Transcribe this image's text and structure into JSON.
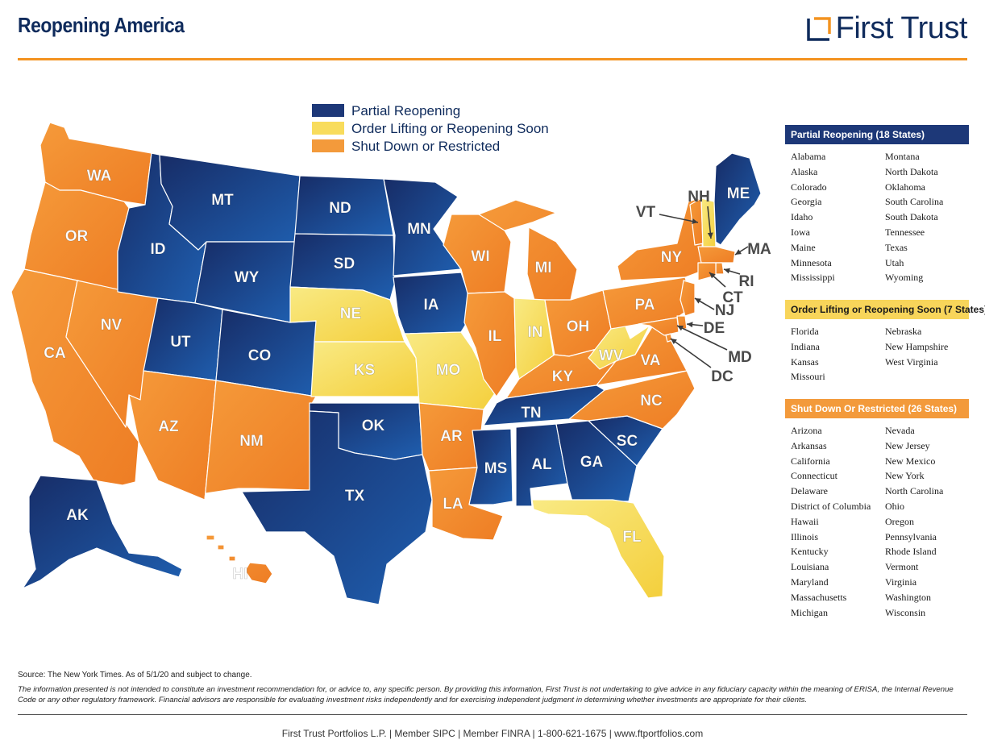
{
  "header": {
    "title": "Reopening America",
    "brand": "First Trust"
  },
  "colors": {
    "partial": "#1d3f86",
    "lifting": "#f7d84c",
    "shutdown": "#f28a2e",
    "accent": "#f39320",
    "navy": "#0f2b5c"
  },
  "legend": [
    {
      "label": "Partial Reopening",
      "category": "partial"
    },
    {
      "label": "Order Lifting or Reopening Soon",
      "category": "lifting"
    },
    {
      "label": "Shut Down or Restricted",
      "category": "shutdown"
    }
  ],
  "map_states": [
    {
      "abbr": "WA",
      "category": "shutdown"
    },
    {
      "abbr": "OR",
      "category": "shutdown"
    },
    {
      "abbr": "CA",
      "category": "shutdown"
    },
    {
      "abbr": "NV",
      "category": "shutdown"
    },
    {
      "abbr": "ID",
      "category": "partial"
    },
    {
      "abbr": "MT",
      "category": "partial"
    },
    {
      "abbr": "WY",
      "category": "partial"
    },
    {
      "abbr": "UT",
      "category": "partial"
    },
    {
      "abbr": "AZ",
      "category": "shutdown"
    },
    {
      "abbr": "CO",
      "category": "partial"
    },
    {
      "abbr": "NM",
      "category": "shutdown"
    },
    {
      "abbr": "ND",
      "category": "partial"
    },
    {
      "abbr": "SD",
      "category": "partial"
    },
    {
      "abbr": "NE",
      "category": "lifting"
    },
    {
      "abbr": "KS",
      "category": "lifting"
    },
    {
      "abbr": "OK",
      "category": "partial"
    },
    {
      "abbr": "TX",
      "category": "partial"
    },
    {
      "abbr": "MN",
      "category": "partial"
    },
    {
      "abbr": "IA",
      "category": "partial"
    },
    {
      "abbr": "MO",
      "category": "lifting"
    },
    {
      "abbr": "AR",
      "category": "shutdown"
    },
    {
      "abbr": "LA",
      "category": "shutdown"
    },
    {
      "abbr": "WI",
      "category": "shutdown"
    },
    {
      "abbr": "IL",
      "category": "shutdown"
    },
    {
      "abbr": "MI",
      "category": "shutdown"
    },
    {
      "abbr": "IN",
      "category": "lifting"
    },
    {
      "abbr": "OH",
      "category": "shutdown"
    },
    {
      "abbr": "KY",
      "category": "shutdown"
    },
    {
      "abbr": "TN",
      "category": "partial"
    },
    {
      "abbr": "MS",
      "category": "partial"
    },
    {
      "abbr": "AL",
      "category": "partial"
    },
    {
      "abbr": "GA",
      "category": "partial"
    },
    {
      "abbr": "FL",
      "category": "lifting"
    },
    {
      "abbr": "SC",
      "category": "partial"
    },
    {
      "abbr": "NC",
      "category": "shutdown"
    },
    {
      "abbr": "VA",
      "category": "shutdown"
    },
    {
      "abbr": "WV",
      "category": "lifting"
    },
    {
      "abbr": "PA",
      "category": "shutdown"
    },
    {
      "abbr": "NY",
      "category": "shutdown"
    },
    {
      "abbr": "VT",
      "category": "shutdown"
    },
    {
      "abbr": "NH",
      "category": "lifting"
    },
    {
      "abbr": "ME",
      "category": "partial"
    },
    {
      "abbr": "MA",
      "category": "shutdown"
    },
    {
      "abbr": "RI",
      "category": "shutdown"
    },
    {
      "abbr": "CT",
      "category": "shutdown"
    },
    {
      "abbr": "NJ",
      "category": "shutdown"
    },
    {
      "abbr": "DE",
      "category": "shutdown"
    },
    {
      "abbr": "MD",
      "category": "shutdown"
    },
    {
      "abbr": "DC",
      "category": "shutdown"
    },
    {
      "abbr": "AK",
      "category": "partial"
    },
    {
      "abbr": "HI",
      "category": "shutdown"
    }
  ],
  "panels": {
    "partial": {
      "heading": "Partial Reopening (18 States)",
      "col1": [
        "Alabama",
        "Alaska",
        "Colorado",
        "Georgia",
        "Idaho",
        "Iowa",
        "Maine",
        "Minnesota",
        "Mississippi"
      ],
      "col2": [
        "Montana",
        "North Dakota",
        "Oklahoma",
        "South Carolina",
        "South Dakota",
        "Tennessee",
        "Texas",
        "Utah",
        "Wyoming"
      ]
    },
    "lifting": {
      "heading": "Order Lifting or Reopening Soon (7 States)",
      "col1": [
        "Florida",
        "Indiana",
        "Kansas",
        "Missouri"
      ],
      "col2": [
        "Nebraska",
        "New Hampshire",
        "West Virginia"
      ]
    },
    "shutdown": {
      "heading": "Shut Down Or Restricted (26 States)",
      "col1": [
        "Arizona",
        "Arkansas",
        "California",
        "Connecticut",
        "Delaware",
        "District of Columbia",
        "Hawaii",
        "Illinois",
        "Kentucky",
        "Louisiana",
        "Maryland",
        "Massachusetts",
        "Michigan"
      ],
      "col2": [
        "Nevada",
        "New Jersey",
        "New Mexico",
        "New York",
        "North Carolina",
        "Ohio",
        "Oregon",
        "Pennsylvania",
        "Rhode Island",
        "Vermont",
        "Virginia",
        "Washington",
        "Wisconsin"
      ]
    }
  },
  "source": "Source: The New York Times. As of 5/1/20 and subject to change.",
  "disclaimer": "The information presented is not intended to constitute an investment recommendation for, or advice to, any specific person. By providing this information, First Trust is not undertaking to give advice in any fiduciary capacity within the meaning of ERISA, the Internal Revenue Code or any other regulatory framework. Financial advisors are responsible for evaluating investment risks independently and for exercising independent judgment in determining whether investments are appropriate for their clients.",
  "footer": "First Trust Portfolios L.P. | Member SIPC | Member FINRA | 1-800-621-1675 | www.ftportfolios.com"
}
